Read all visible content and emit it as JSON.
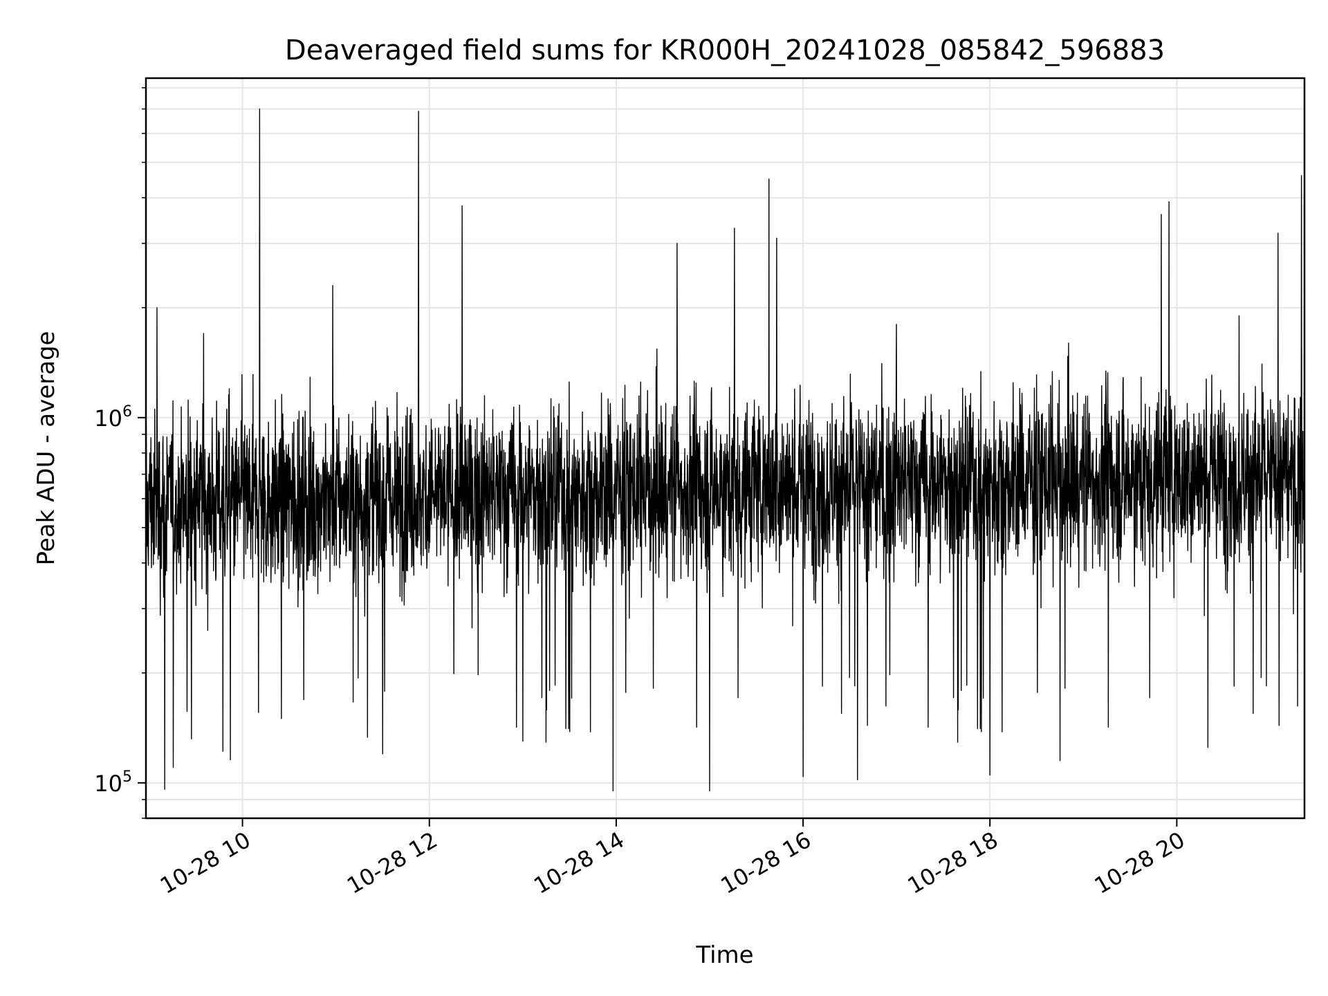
{
  "chart_data": {
    "type": "line",
    "title": "Deaveraged field sums for KR000H_20241028_085842_596883",
    "xlabel": "Time",
    "ylabel": "Peak ADU - average",
    "x_tick_labels": [
      "10-28 10",
      "10-28 12",
      "10-28 14",
      "10-28 16",
      "10-28 18",
      "10-28 20"
    ],
    "x_ticks": [
      "2024-10-28 10:00",
      "2024-10-28 12:00",
      "2024-10-28 14:00",
      "2024-10-28 16:00",
      "2024-10-28 18:00",
      "2024-10-28 20:00"
    ],
    "xlim": [
      "2024-10-28 08:58",
      "2024-10-28 21:22"
    ],
    "y_scale": "log",
    "ylim": [
      80000,
      8500000
    ],
    "y_tick_labels": [
      {
        "base": "10",
        "exp": "5"
      },
      {
        "base": "10",
        "exp": "6"
      }
    ],
    "y_ticks": [
      100000,
      1000000
    ],
    "grid": true,
    "series_color": "#000000",
    "series": [
      {
        "x": [
          "2024-10-28 09:00",
          "2024-10-28 09:05",
          "2024-10-28 09:10",
          "2024-10-28 09:20",
          "2024-10-28 09:35",
          "2024-10-28 09:47",
          "2024-10-28 10:00",
          "2024-10-28 10:11",
          "2024-10-28 10:25",
          "2024-10-28 10:40",
          "2024-10-28 10:58",
          "2024-10-28 11:15",
          "2024-10-28 11:30",
          "2024-10-28 11:45",
          "2024-10-28 11:53",
          "2024-10-28 12:10",
          "2024-10-28 12:21",
          "2024-10-28 12:40",
          "2024-10-28 13:00",
          "2024-10-28 13:20",
          "2024-10-28 13:40",
          "2024-10-28 13:58",
          "2024-10-28 14:20",
          "2024-10-28 14:39",
          "2024-10-28 15:00",
          "2024-10-28 15:16",
          "2024-10-28 15:30",
          "2024-10-28 15:38",
          "2024-10-28 15:43",
          "2024-10-28 16:00",
          "2024-10-28 16:20",
          "2024-10-28 16:35",
          "2024-10-28 17:00",
          "2024-10-28 17:20",
          "2024-10-28 17:40",
          "2024-10-28 18:00",
          "2024-10-28 18:20",
          "2024-10-28 18:45",
          "2024-10-28 19:10",
          "2024-10-28 19:30",
          "2024-10-28 19:50",
          "2024-10-28 19:55",
          "2024-10-28 20:20",
          "2024-10-28 20:40",
          "2024-10-28 21:00",
          "2024-10-28 21:05",
          "2024-10-28 21:15",
          "2024-10-28 21:20"
        ],
        "y": [
          700000,
          2000000,
          96000,
          600000,
          1700000,
          500000,
          650000,
          7000000,
          150000,
          700000,
          2300000,
          600000,
          120000,
          800000,
          6900000,
          500000,
          3800000,
          650000,
          130000,
          700000,
          550000,
          95000,
          700000,
          3000000,
          95000,
          3300000,
          750000,
          4500000,
          3100000,
          104000,
          700000,
          102000,
          1800000,
          650000,
          700000,
          105000,
          700000,
          115000,
          600000,
          700000,
          3600000,
          3900000,
          125000,
          1900000,
          500000,
          3200000,
          290000,
          4600000
        ]
      }
    ]
  }
}
